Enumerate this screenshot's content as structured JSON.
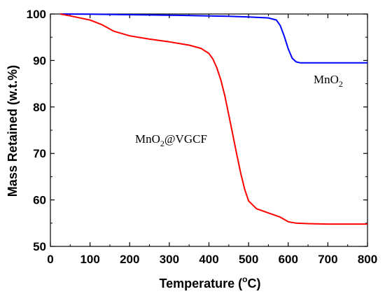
{
  "chart_data": {
    "type": "line",
    "xlabel_prefix": "Temperature (",
    "xlabel_degree": "o",
    "xlabel_suffix": "C)",
    "ylabel": "Mass Retained (w.t.%)",
    "xlim": [
      0,
      800
    ],
    "ylim": [
      50,
      100
    ],
    "x_ticks": [
      0,
      100,
      200,
      300,
      400,
      500,
      600,
      700,
      800
    ],
    "y_ticks": [
      50,
      60,
      70,
      80,
      90,
      100
    ],
    "grid": false,
    "legend": "none",
    "series": [
      {
        "label_main": "MnO",
        "label_sub": "2",
        "label_suffix": "",
        "color": "#0000ff",
        "x": [
          25,
          100,
          200,
          300,
          400,
          450,
          500,
          550,
          570,
          580,
          590,
          600,
          610,
          620,
          630,
          650,
          700,
          750,
          800
        ],
        "y": [
          100,
          99.95,
          99.85,
          99.75,
          99.6,
          99.5,
          99.35,
          99.15,
          98.7,
          97.5,
          95.2,
          92.5,
          90.5,
          89.7,
          89.5,
          89.5,
          89.5,
          89.5,
          89.5
        ]
      },
      {
        "label_main": "MnO",
        "label_sub": "2",
        "label_suffix": "@VGCF",
        "color": "#ff0000",
        "x": [
          25,
          50,
          100,
          130,
          160,
          200,
          250,
          300,
          350,
          380,
          400,
          410,
          420,
          430,
          440,
          450,
          460,
          470,
          480,
          490,
          500,
          520,
          550,
          580,
          600,
          620,
          650,
          700,
          800
        ],
        "y": [
          100,
          99.6,
          98.7,
          97.7,
          96.3,
          95.3,
          94.6,
          94.0,
          93.3,
          92.6,
          91.5,
          90.3,
          88.4,
          85.8,
          82.4,
          78.3,
          74.1,
          69.9,
          65.8,
          62.3,
          59.8,
          58.1,
          57.2,
          56.3,
          55.3,
          55.0,
          54.9,
          54.8,
          54.8
        ]
      }
    ]
  }
}
